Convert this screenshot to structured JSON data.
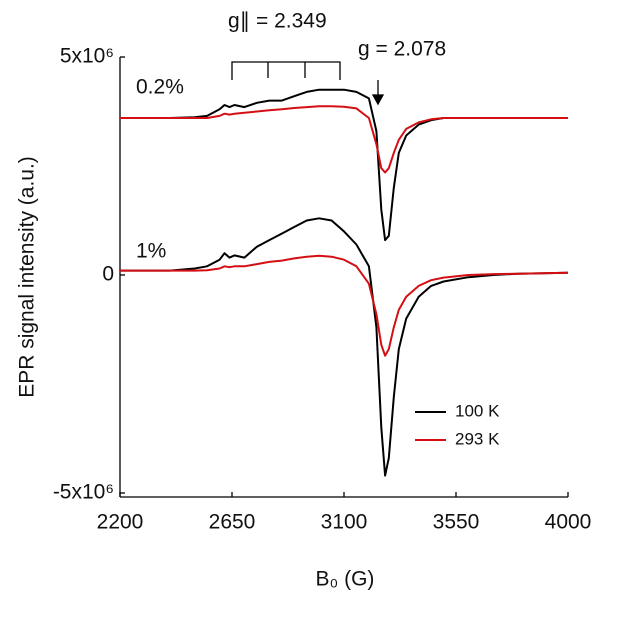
{
  "chart_data": {
    "type": "line",
    "x_label": "B₀ (G)",
    "y_label": "EPR signal intensity (a.u.)",
    "xlim": [
      2200,
      4000
    ],
    "xticks": [
      2200,
      2650,
      3100,
      3550,
      4000
    ],
    "ylim": [
      -5000000,
      5000000
    ],
    "yticks": [
      {
        "value": -5000000,
        "label": "-5x10⁶"
      },
      0,
      {
        "value": 5000000,
        "label": "5x10⁶"
      }
    ],
    "annotations": [
      "0.2%",
      "1%",
      "g∥ = 2.349",
      "g = 2.078"
    ],
    "legend_position": "lower right",
    "x": [
      2200,
      2300,
      2400,
      2500,
      2550,
      2600,
      2620,
      2640,
      2660,
      2700,
      2750,
      2800,
      2850,
      2900,
      2950,
      3000,
      3050,
      3100,
      3150,
      3200,
      3230,
      3250,
      3265,
      3280,
      3300,
      3320,
      3350,
      3400,
      3450,
      3500,
      3600,
      3700,
      3800,
      4000
    ],
    "series": [
      {
        "name": "100 K",
        "color": "#000000",
        "values": [
          3600000,
          3600000,
          3600000,
          3620000,
          3650000,
          3800000,
          3900000,
          3850000,
          3900000,
          3850000,
          3950000,
          4000000,
          4000000,
          4100000,
          4200000,
          4250000,
          4250000,
          4250000,
          4200000,
          4050000,
          3300000,
          1500000,
          800000,
          900000,
          2000000,
          2800000,
          3200000,
          3450000,
          3550000,
          3600000,
          3600000,
          3600000,
          3600000,
          3600000
        ]
      },
      {
        "name": "293 K",
        "color": "#d40f14",
        "values": [
          3600000,
          3600000,
          3600000,
          3600000,
          3600000,
          3650000,
          3700000,
          3680000,
          3700000,
          3720000,
          3750000,
          3780000,
          3800000,
          3830000,
          3850000,
          3870000,
          3870000,
          3860000,
          3820000,
          3600000,
          3000000,
          2450000,
          2350000,
          2450000,
          2800000,
          3100000,
          3350000,
          3500000,
          3570000,
          3600000,
          3600000,
          3600000,
          3600000,
          3600000
        ]
      },
      {
        "color": "#000000",
        "values": [
          100000,
          100000,
          100000,
          150000,
          200000,
          350000,
          500000,
          400000,
          450000,
          400000,
          650000,
          800000,
          950000,
          1100000,
          1250000,
          1300000,
          1250000,
          1000000,
          700000,
          200000,
          -1200000,
          -3500000,
          -4600000,
          -4200000,
          -2800000,
          -1700000,
          -1000000,
          -500000,
          -250000,
          -150000,
          -50000,
          0,
          30000,
          50000
        ]
      },
      {
        "color": "#d40f14",
        "values": [
          100000,
          100000,
          100000,
          100000,
          110000,
          150000,
          200000,
          180000,
          200000,
          200000,
          250000,
          300000,
          330000,
          380000,
          420000,
          440000,
          420000,
          350000,
          200000,
          -200000,
          -900000,
          -1600000,
          -1850000,
          -1700000,
          -1200000,
          -800000,
          -500000,
          -250000,
          -120000,
          -60000,
          0,
          20000,
          30000,
          50000
        ]
      }
    ]
  }
}
